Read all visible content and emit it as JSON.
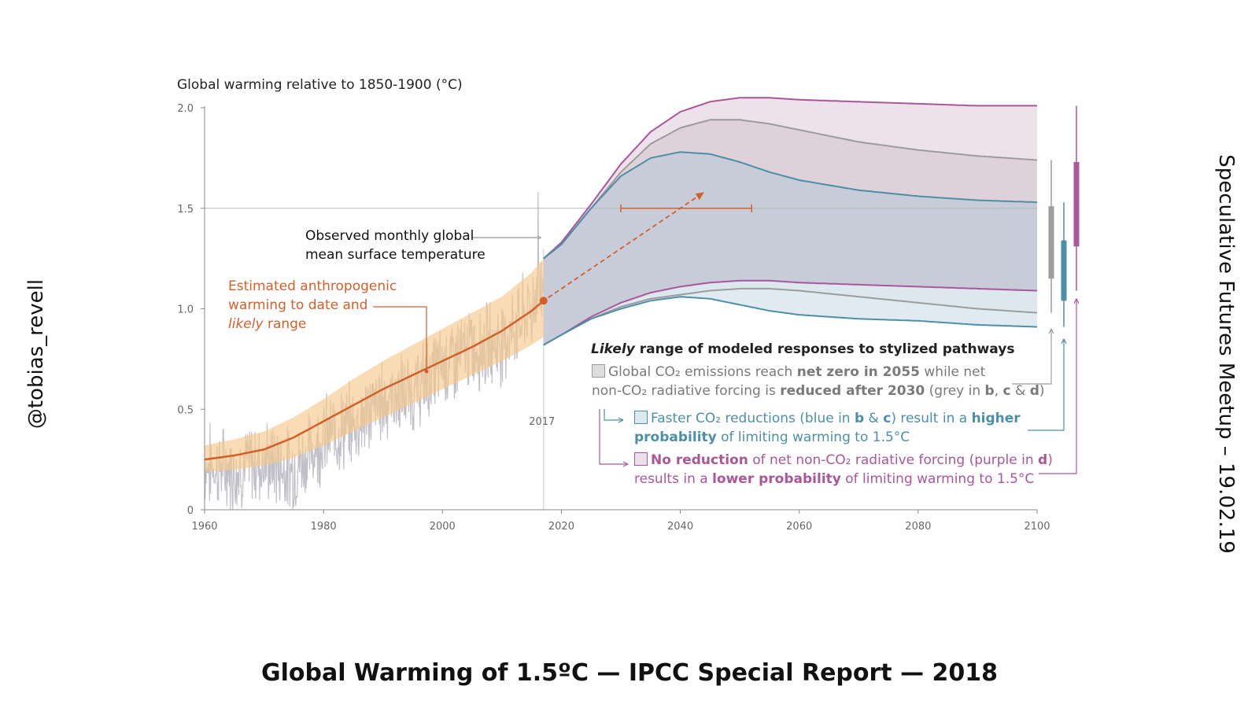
{
  "chart_data": {
    "type": "area",
    "ylabel": "Global warming relative to 1850-1900 (°C)",
    "xlim": [
      1960,
      2100
    ],
    "ylim": [
      0,
      2.0
    ],
    "x_ticks": [
      1960,
      1980,
      2000,
      2020,
      2040,
      2060,
      2080,
      2100
    ],
    "x_tick_labels": [
      "1960",
      "1980",
      "2000",
      "2020",
      "2040",
      "2060",
      "2080",
      "2100"
    ],
    "y_ticks": [
      0,
      0.5,
      1.0,
      1.5,
      2.0
    ],
    "y_tick_labels": [
      "0",
      "0.5",
      "1.0",
      "1.5",
      "2.0"
    ],
    "reference_line": 1.5,
    "marker_year_label": "2017",
    "observed_label": "Observed monthly global mean surface temperature",
    "anthropogenic_label": [
      "Estimated anthropogenic",
      "warming to date and",
      "likely range"
    ],
    "anthropogenic": {
      "x": [
        1960,
        1965,
        1970,
        1975,
        1980,
        1985,
        1990,
        1995,
        2000,
        2005,
        2010,
        2015,
        2017
      ],
      "central": [
        0.25,
        0.27,
        0.3,
        0.36,
        0.44,
        0.52,
        0.6,
        0.67,
        0.74,
        0.81,
        0.89,
        0.99,
        1.04
      ],
      "lower": [
        0.19,
        0.2,
        0.22,
        0.26,
        0.32,
        0.39,
        0.46,
        0.53,
        0.6,
        0.67,
        0.74,
        0.82,
        0.86
      ],
      "upper": [
        0.32,
        0.35,
        0.39,
        0.46,
        0.55,
        0.65,
        0.74,
        0.82,
        0.9,
        0.98,
        1.06,
        1.18,
        1.25
      ]
    },
    "observed_monthly": {
      "x_start": 1960,
      "x_end": 2017,
      "anchors_x": [
        1960,
        1965,
        1970,
        1975,
        1980,
        1985,
        1990,
        1995,
        2000,
        2005,
        2010,
        2015,
        2017
      ],
      "anchors_y": [
        0.22,
        0.2,
        0.24,
        0.2,
        0.36,
        0.42,
        0.55,
        0.58,
        0.72,
        0.8,
        0.84,
        1.0,
        1.15
      ],
      "peak": 1.58
    },
    "projection_arrow": {
      "from": [
        2017,
        1.04
      ],
      "to": [
        2044,
        1.58
      ]
    },
    "crossing_range": {
      "x": [
        2030,
        2052
      ],
      "y": 1.5
    },
    "pathways": {
      "x": [
        2017,
        2020,
        2025,
        2030,
        2035,
        2040,
        2045,
        2050,
        2055,
        2060,
        2070,
        2080,
        2090,
        2100
      ],
      "grey_upper": [
        1.25,
        1.32,
        1.5,
        1.68,
        1.82,
        1.9,
        1.94,
        1.94,
        1.92,
        1.89,
        1.83,
        1.79,
        1.76,
        1.74
      ],
      "grey_lower": [
        0.82,
        0.87,
        0.95,
        1.01,
        1.05,
        1.07,
        1.09,
        1.1,
        1.1,
        1.09,
        1.06,
        1.03,
        1.0,
        0.98
      ],
      "blue_upper": [
        1.25,
        1.32,
        1.5,
        1.66,
        1.75,
        1.78,
        1.77,
        1.73,
        1.68,
        1.64,
        1.59,
        1.56,
        1.54,
        1.53
      ],
      "blue_lower": [
        0.82,
        0.87,
        0.95,
        1.0,
        1.04,
        1.06,
        1.05,
        1.02,
        0.99,
        0.97,
        0.95,
        0.94,
        0.92,
        0.91
      ],
      "purple_upper": [
        1.25,
        1.33,
        1.52,
        1.72,
        1.88,
        1.98,
        2.03,
        2.05,
        2.05,
        2.04,
        2.03,
        2.02,
        2.01,
        2.01
      ],
      "purple_lower": [
        0.82,
        0.87,
        0.96,
        1.03,
        1.08,
        1.11,
        1.13,
        1.14,
        1.14,
        1.13,
        1.12,
        1.11,
        1.1,
        1.09
      ]
    },
    "range_bars_2100": [
      {
        "series": "grey",
        "whisker": [
          0.98,
          1.74
        ],
        "box": [
          1.15,
          1.51
        ]
      },
      {
        "series": "blue",
        "whisker": [
          0.91,
          1.53
        ],
        "box": [
          1.04,
          1.34
        ]
      },
      {
        "series": "purple",
        "whisker": [
          1.09,
          2.01
        ],
        "box": [
          1.31,
          1.73
        ]
      }
    ],
    "legend": {
      "title_italic": "Likely",
      "title_rest": " range of modeled responses to stylized pathways",
      "grey": [
        "Global CO₂ emissions reach ",
        "net zero in 2055",
        " while net",
        "non-CO₂ radiative forcing is ",
        "reduced after 2030",
        " (grey in ",
        "b",
        ", ",
        "c",
        " & ",
        "d",
        ")"
      ],
      "blue": [
        "Faster CO₂ reductions (blue in ",
        "b",
        " & ",
        "c",
        ") result in a ",
        "higher",
        "probability",
        " of limiting warming to 1.5°C"
      ],
      "purple": [
        "No reduction",
        " of net non-CO₂ radiative forcing (purple in ",
        "d",
        ")",
        "results in a ",
        "lower probability",
        " of limiting warming to 1.5°C"
      ]
    },
    "colors": {
      "observed": "#b9b9c2",
      "anthropogenic": "#d35f2a",
      "anthropogenic_band": "#f6c88c",
      "grey": "#9c9c9c",
      "blue": "#4d8fa6",
      "purple": "#a9579a",
      "overlap_fill": "#c6cad6",
      "purple_fill": "#ecdfe9",
      "blue_fill": "#dde9ef"
    }
  },
  "side_left": "@tobias_revell",
  "side_right": "Speculative Futures Meetup – 19.02.19",
  "caption": "Global Warming of 1.5ºC — IPCC Special Report — 2018"
}
